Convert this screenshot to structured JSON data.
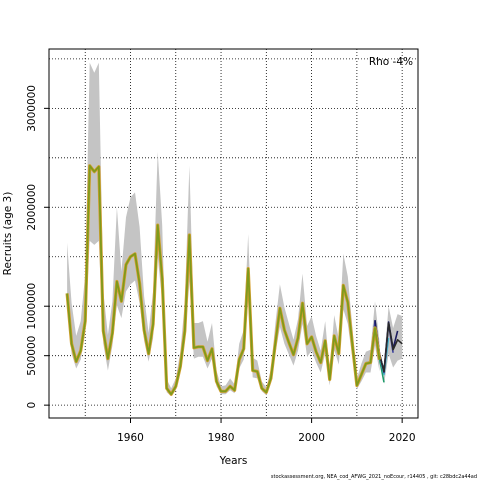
{
  "chart_data": {
    "type": "line",
    "xlabel": "Years",
    "ylabel": "Recruits (age 3)",
    "xlim": [
      1942,
      2023.5
    ],
    "ylim": [
      -130000,
      3600000
    ],
    "xticks": [
      1960,
      1980,
      2000,
      2020
    ],
    "yticks": [
      0,
      500000,
      1000000,
      2000000,
      3000000
    ],
    "ytick_labels": [
      "0",
      "500000",
      "1000000",
      "2000000",
      "3000000"
    ],
    "grid_x": [
      1950,
      1960,
      1970,
      1980,
      1990,
      2000,
      2010,
      2020
    ],
    "grid_y": [
      0,
      500000,
      1000000,
      1500000,
      2000000,
      2500000,
      3000000,
      3500000
    ],
    "grid": true,
    "annotation": "Rho -4%",
    "footer": "stockassessment.org, NEA_cod_AFWG_2021_noEcour, r14405 , git: c28bdc2a44ad",
    "colors": {
      "band": "#c4c4c4",
      "main": "#7f9a1c",
      "main_outline": "#d6a030",
      "retro": [
        "#1f9a6a",
        "#47b3c9",
        "#3a3f9e",
        "#1b1b5e",
        "#2a2a2a"
      ]
    },
    "main": {
      "years": [
        1946,
        1947,
        1948,
        1949,
        1950,
        1951,
        1952,
        1953,
        1954,
        1955,
        1956,
        1957,
        1958,
        1959,
        1960,
        1961,
        1962,
        1963,
        1964,
        1965,
        1966,
        1967,
        1968,
        1969,
        1970,
        1971,
        1972,
        1973,
        1974,
        1975,
        1976,
        1977,
        1978,
        1979,
        1980,
        1981,
        1982,
        1983,
        1984,
        1985,
        1986,
        1987,
        1988,
        1989,
        1990,
        1991,
        1992,
        1993,
        1994,
        1995,
        1996,
        1997,
        1998,
        1999,
        2000,
        2001,
        2002,
        2003,
        2004,
        2005,
        2006,
        2007,
        2008,
        2009,
        2010,
        2011,
        2012,
        2013,
        2014,
        2015
      ],
      "values": [
        1130000,
        620000,
        440000,
        550000,
        850000,
        2420000,
        2360000,
        2410000,
        750000,
        470000,
        730000,
        1250000,
        1050000,
        1420000,
        1500000,
        1530000,
        1230000,
        760000,
        520000,
        820000,
        1820000,
        1280000,
        170000,
        110000,
        190000,
        390000,
        750000,
        1720000,
        580000,
        590000,
        590000,
        450000,
        570000,
        240000,
        140000,
        140000,
        190000,
        150000,
        460000,
        570000,
        1380000,
        350000,
        340000,
        170000,
        130000,
        270000,
        630000,
        980000,
        760000,
        630000,
        510000,
        680000,
        1030000,
        620000,
        690000,
        540000,
        430000,
        650000,
        260000,
        700000,
        520000,
        1210000,
        1040000,
        620000,
        200000,
        310000,
        420000,
        430000,
        780000,
        460000
      ],
      "lower": [
        1010000,
        520000,
        370000,
        460000,
        730000,
        1660000,
        1620000,
        1660000,
        620000,
        350000,
        600000,
        1010000,
        880000,
        1150000,
        1220000,
        1260000,
        1030000,
        650000,
        440000,
        680000,
        1500000,
        1050000,
        130000,
        90000,
        150000,
        330000,
        640000,
        1250000,
        470000,
        490000,
        490000,
        370000,
        470000,
        190000,
        110000,
        110000,
        150000,
        120000,
        370000,
        460000,
        1050000,
        280000,
        270000,
        140000,
        100000,
        220000,
        520000,
        790000,
        620000,
        510000,
        400000,
        550000,
        820000,
        490000,
        550000,
        430000,
        330000,
        520000,
        200000,
        560000,
        410000,
        970000,
        820000,
        480000,
        160000,
        240000,
        330000,
        330000,
        600000,
        340000
      ],
      "upper": [
        1640000,
        1030000,
        700000,
        850000,
        1320000,
        3460000,
        3360000,
        3460000,
        1150000,
        710000,
        1050000,
        2000000,
        1350000,
        1900000,
        2100000,
        2150000,
        1800000,
        1100000,
        730000,
        1150000,
        2560000,
        1820000,
        260000,
        170000,
        270000,
        540000,
        1040000,
        2420000,
        830000,
        830000,
        850000,
        640000,
        830000,
        350000,
        190000,
        200000,
        270000,
        210000,
        620000,
        760000,
        1730000,
        480000,
        450000,
        240000,
        180000,
        360000,
        830000,
        1220000,
        990000,
        820000,
        660000,
        870000,
        1330000,
        800000,
        900000,
        700000,
        550000,
        850000,
        340000,
        910000,
        670000,
        1530000,
        1300000,
        800000,
        270000,
        420000,
        540000,
        560000,
        1050000,
        640000
      ]
    },
    "series": [
      {
        "years": [
          2011,
          2012,
          2013,
          2014,
          2015,
          2016
        ],
        "values": [
          310000,
          420000,
          430000,
          800000,
          470000,
          230000
        ]
      },
      {
        "years": [
          2012,
          2013,
          2014,
          2015,
          2016,
          2017
        ],
        "values": [
          430000,
          440000,
          830000,
          500000,
          310000,
          680000
        ]
      },
      {
        "years": [
          2013,
          2014,
          2015,
          2016,
          2017,
          2018
        ],
        "values": [
          450000,
          850000,
          520000,
          330000,
          820000,
          530000
        ]
      },
      {
        "years": [
          2014,
          2015,
          2016,
          2017,
          2018,
          2019
        ],
        "values": [
          860000,
          520000,
          340000,
          840000,
          570000,
          750000
        ]
      },
      {
        "years": [
          2015,
          2016,
          2017,
          2018,
          2019,
          2020
        ],
        "values": [
          510000,
          340000,
          830000,
          560000,
          660000,
          620000
        ]
      }
    ],
    "retro_bands": [
      {
        "years": [
          2016,
          2017,
          2018,
          2019,
          2020
        ],
        "lower": [
          210000,
          520000,
          380000,
          450000,
          470000
        ],
        "upper": [
          440000,
          1000000,
          780000,
          920000,
          900000
        ]
      }
    ]
  }
}
